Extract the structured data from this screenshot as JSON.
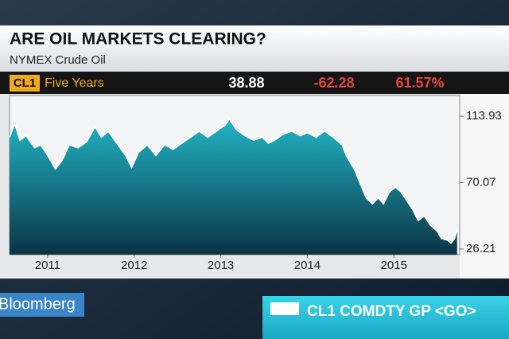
{
  "chart_data": {
    "type": "area",
    "title": "ARE OIL MARKETS CLEARING?",
    "subtitle": "NYMEX Crude Oil",
    "ticker": "CL1",
    "period": "Five Years",
    "last": "38.88",
    "change": "-62.28",
    "change_pct": "61.57%",
    "x": [
      2010.56,
      2010.62,
      2010.68,
      2010.75,
      2010.85,
      2010.92,
      2011.0,
      2011.09,
      2011.17,
      2011.25,
      2011.35,
      2011.45,
      2011.55,
      2011.62,
      2011.7,
      2011.8,
      2011.9,
      2011.97,
      2012.05,
      2012.15,
      2012.25,
      2012.35,
      2012.45,
      2012.55,
      2012.65,
      2012.75,
      2012.85,
      2012.95,
      2013.05,
      2013.1,
      2013.18,
      2013.28,
      2013.38,
      2013.48,
      2013.55,
      2013.62,
      2013.72,
      2013.82,
      2013.92,
      2014.0,
      2014.1,
      2014.2,
      2014.3,
      2014.4,
      2014.45,
      2014.55,
      2014.62,
      2014.68,
      2014.75,
      2014.82,
      2014.88,
      2014.95,
      2015.02,
      2015.08,
      2015.15,
      2015.22,
      2015.28,
      2015.35,
      2015.42,
      2015.5,
      2015.55,
      2015.62,
      2015.66,
      2015.7,
      2015.73
    ],
    "values": [
      100,
      109,
      98,
      101,
      93,
      95,
      88,
      79,
      85,
      95,
      93,
      97,
      107,
      100,
      104,
      96,
      88,
      80,
      90,
      95,
      88,
      95,
      92,
      96,
      100,
      104,
      100,
      104,
      108,
      112,
      105,
      101,
      98,
      100,
      96,
      98,
      102,
      104,
      101,
      103,
      100,
      104,
      100,
      95,
      88,
      78,
      68,
      60,
      56,
      60,
      56,
      64,
      67,
      64,
      58,
      52,
      45,
      48,
      42,
      38,
      33,
      32,
      30,
      33,
      38.88
    ],
    "color": "#1aa3b5",
    "xlim": [
      2010.56,
      2015.76
    ],
    "xticks": [
      2011,
      2012,
      2013,
      2014,
      2015
    ],
    "ylim": [
      22.5,
      127.6
    ],
    "yticks": [
      113.93,
      70.07,
      26.21
    ],
    "grid": false
  },
  "brand": "Bloomberg",
  "command": "CL1 COMDTY GP <GO>"
}
